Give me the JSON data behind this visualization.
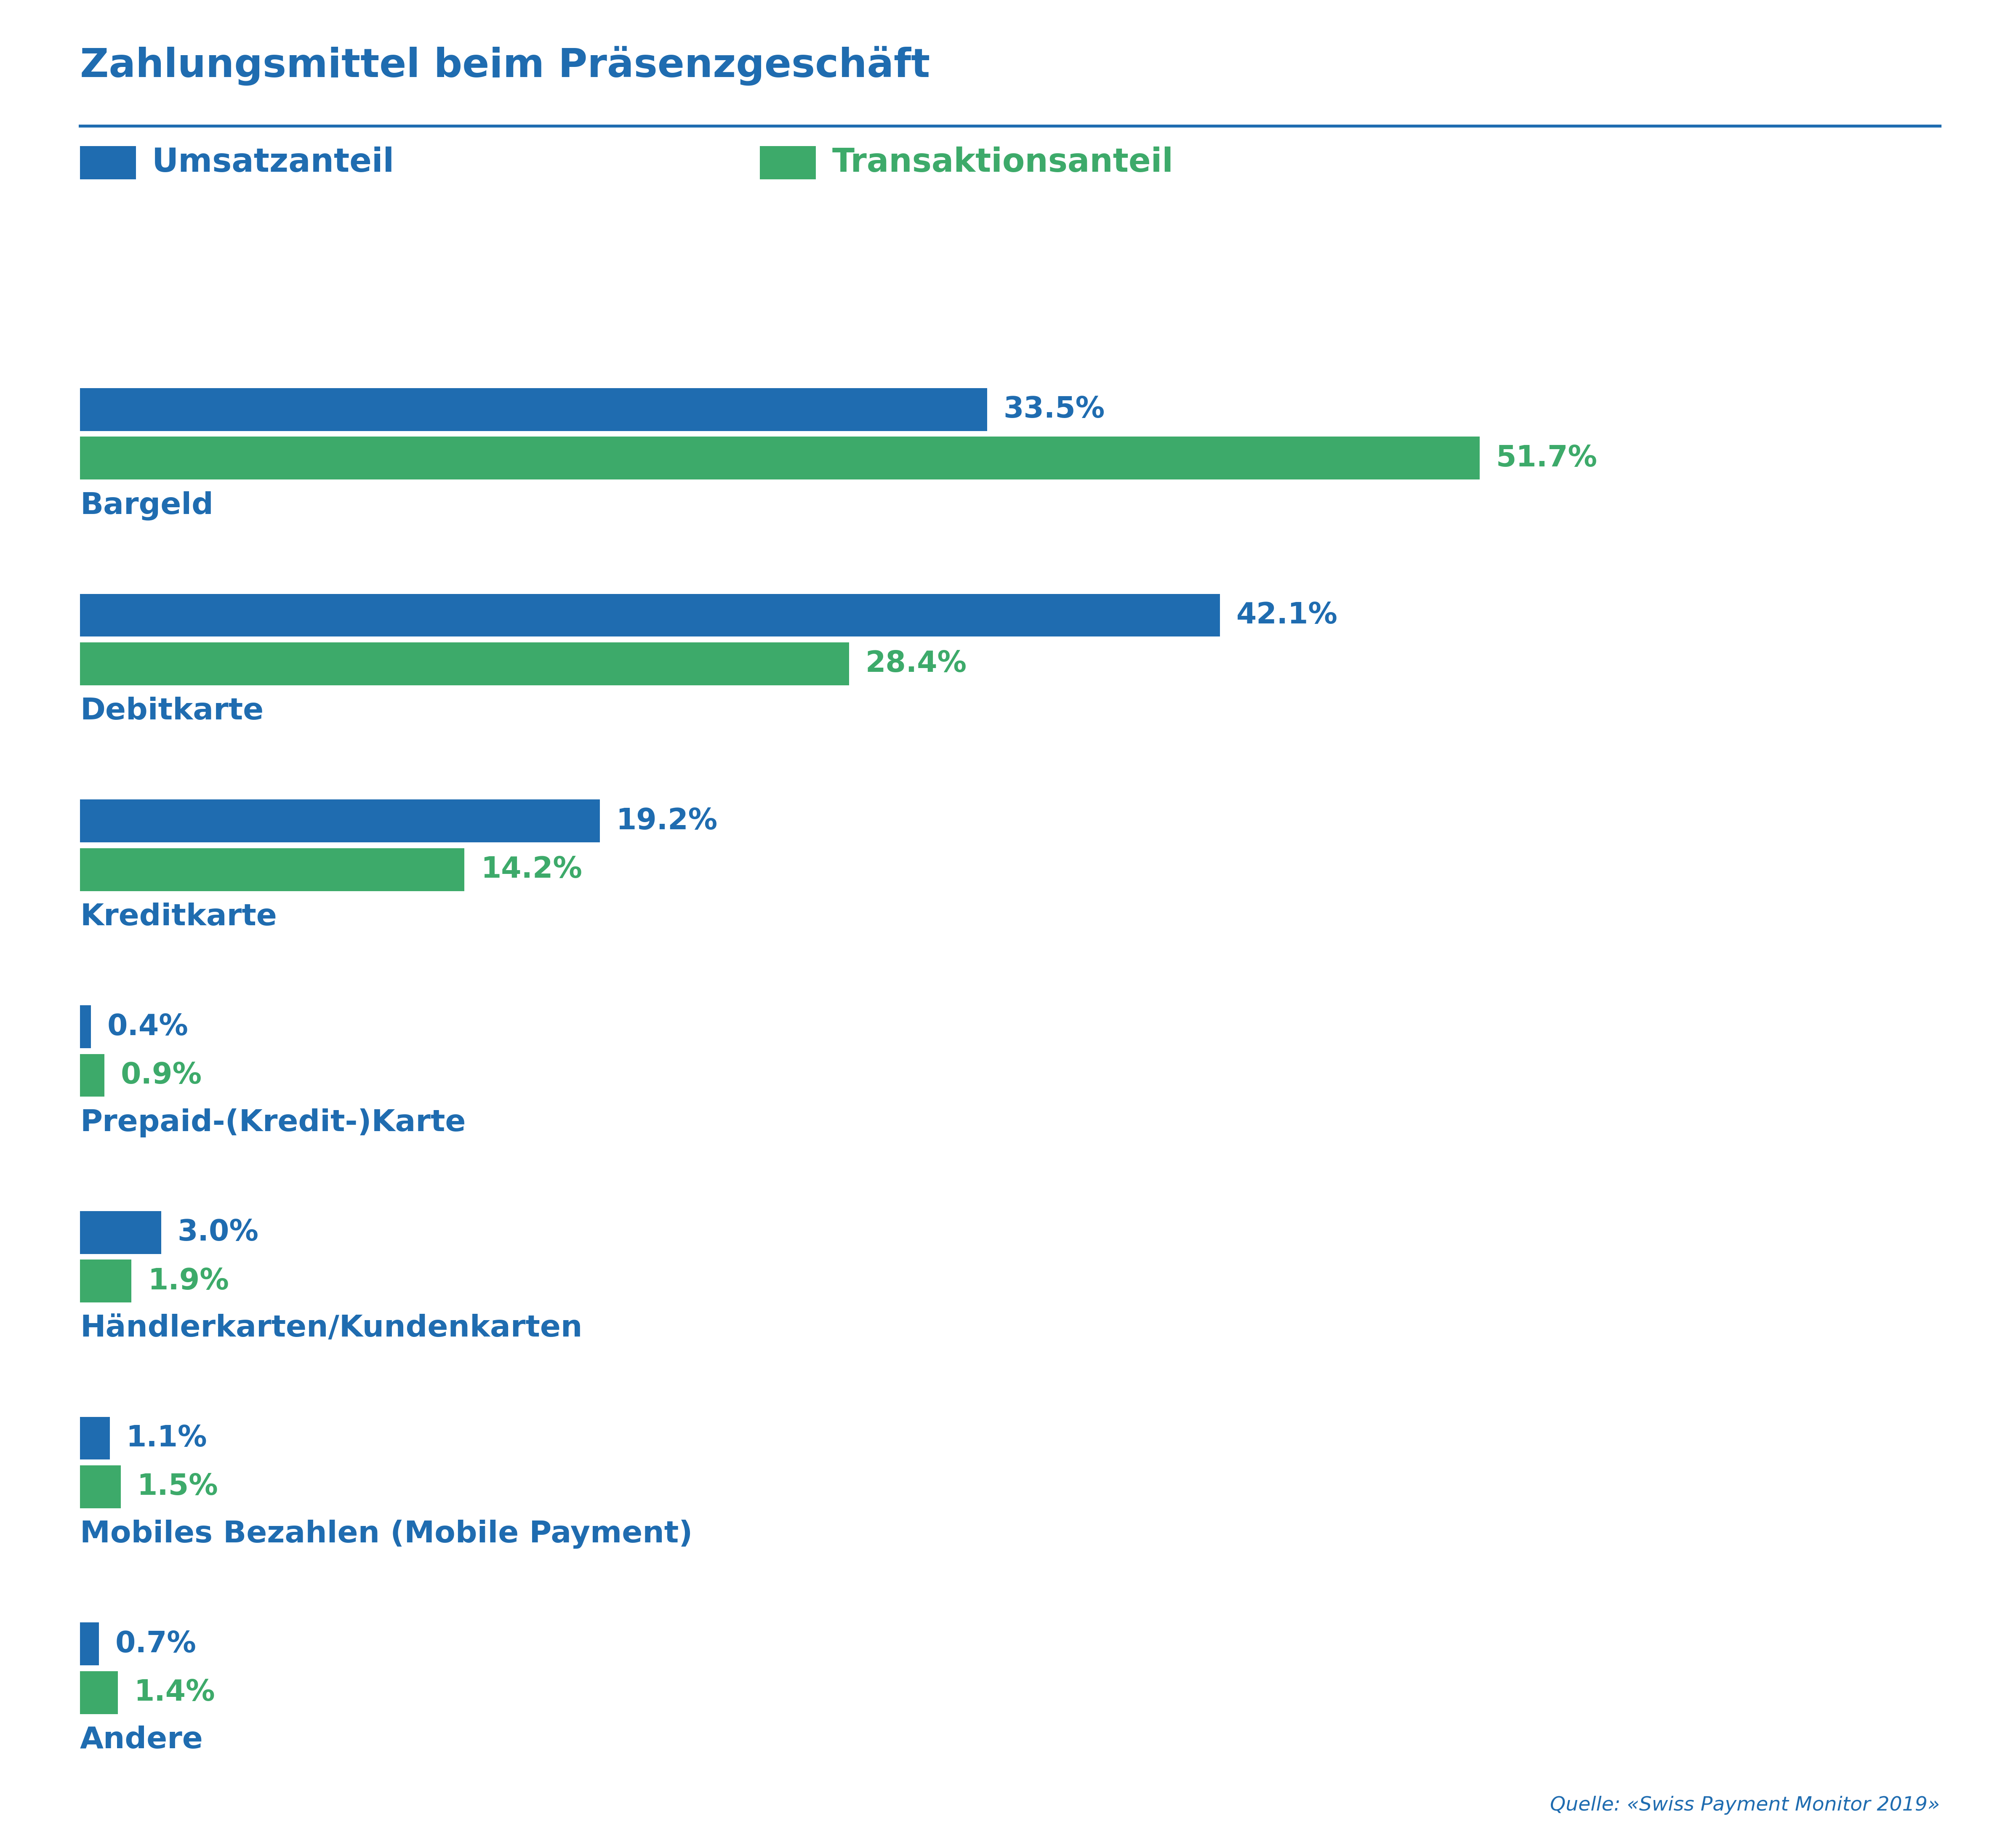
{
  "title": "Zahlungsmittel beim Präsenzgeschäft",
  "blue_color": "#1F6CB0",
  "green_color": "#3DAA6A",
  "categories": [
    "Bargeld",
    "Debitkarte",
    "Kreditkarte",
    "Prepaid-(Kredit-)Karte",
    "Händlerkarten/Kundenkarten",
    "Mobiles Bezahlen (Mobile Payment)",
    "Andere"
  ],
  "umsatz": [
    33.5,
    42.1,
    19.2,
    0.4,
    3.0,
    1.1,
    0.7
  ],
  "transaktion": [
    51.7,
    28.4,
    14.2,
    0.9,
    1.9,
    1.5,
    1.4
  ],
  "legend_umsatz": "Umsatzanteil",
  "legend_transaktion": "Transaktionsanteil",
  "source_text": "Quelle: «Swiss Payment Monitor 2019»",
  "title_fontsize": 68,
  "legend_fontsize": 56,
  "bar_label_fontsize": 50,
  "category_label_fontsize": 52,
  "source_fontsize": 34,
  "xlim": [
    0,
    65
  ],
  "background_color": "#ffffff"
}
